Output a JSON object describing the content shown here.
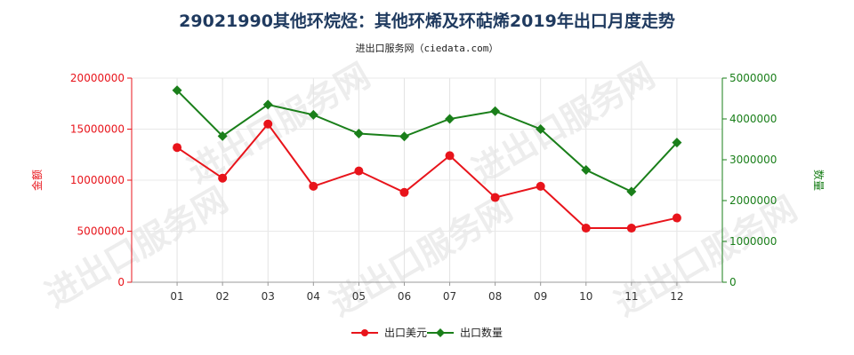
{
  "chart_data": {
    "type": "line",
    "title": "29021990其他环烷烃：其他环烯及环萜烯2019年出口月度走势",
    "subtitle": "进出口服务网（ciedata.com）",
    "categories": [
      "01",
      "02",
      "03",
      "04",
      "05",
      "06",
      "07",
      "08",
      "09",
      "10",
      "11",
      "12"
    ],
    "series": [
      {
        "name": "出口美元",
        "axis": "left",
        "color": "#e8141b",
        "marker": "circle",
        "values": [
          13200000,
          10200000,
          15500000,
          9400000,
          10900000,
          8800000,
          12400000,
          8300000,
          9400000,
          5300000,
          5300000,
          6300000
        ]
      },
      {
        "name": "出口数量",
        "axis": "right",
        "color": "#1a7f1a",
        "marker": "diamond",
        "values": [
          4700000,
          3580000,
          4350000,
          4100000,
          3640000,
          3570000,
          4000000,
          4190000,
          3750000,
          2750000,
          2220000,
          3420000
        ]
      }
    ],
    "left_axis": {
      "label": "金额",
      "color": "#e8141b",
      "ylim": [
        0,
        20000000
      ],
      "ticks": [
        "0",
        "5000000",
        "10000000",
        "15000000",
        "20000000"
      ]
    },
    "right_axis": {
      "label": "数量",
      "color": "#1a7f1a",
      "ylim": [
        0,
        5000000
      ],
      "ticks": [
        "0",
        "1000000",
        "2000000",
        "3000000",
        "4000000",
        "5000000"
      ]
    },
    "legend": {
      "position": "bottom-center"
    },
    "watermark": "进出口服务网"
  }
}
